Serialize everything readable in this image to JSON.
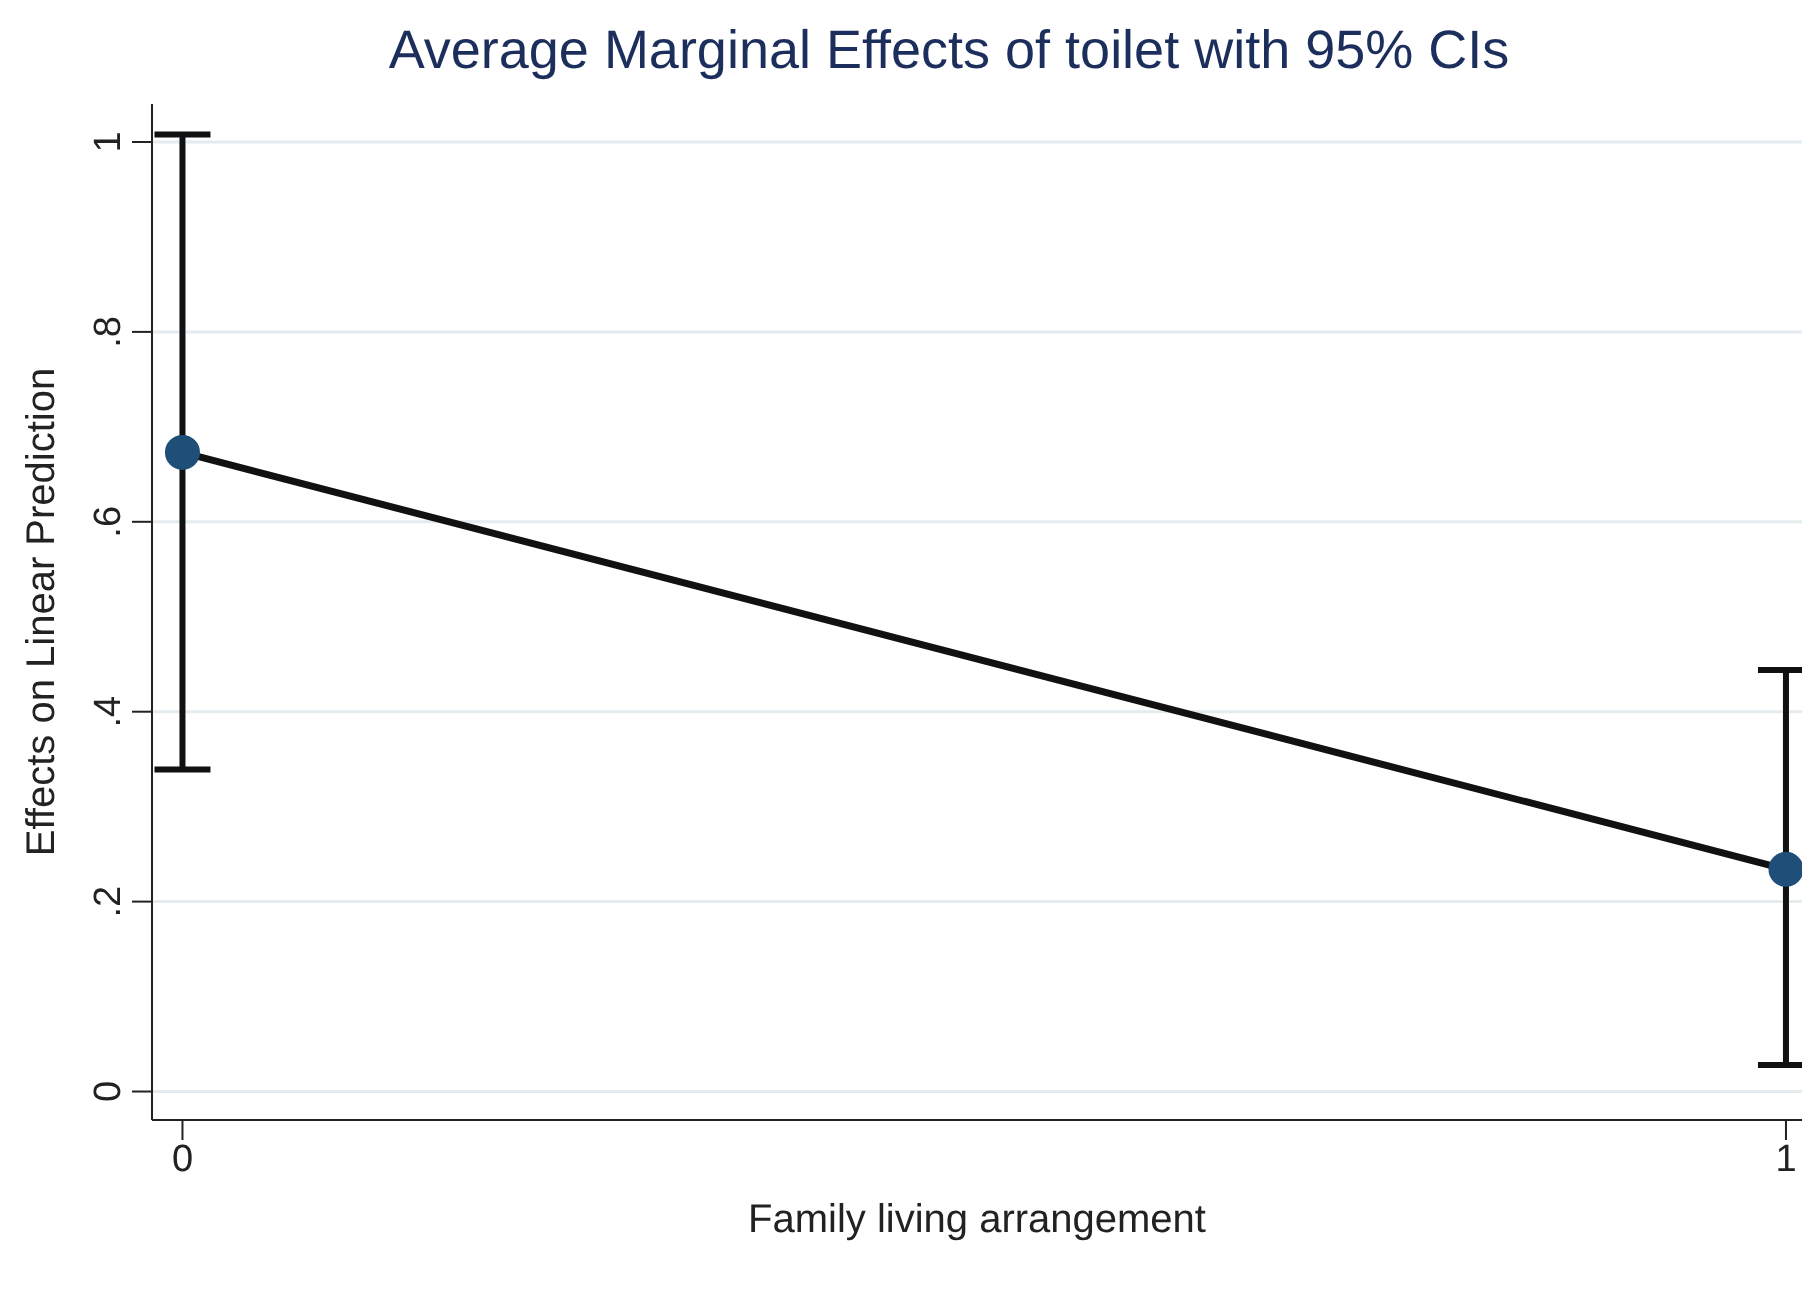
{
  "chart_data": {
    "type": "line",
    "title": "Average Marginal Effects of toilet with 95% CIs",
    "xlabel": "Family living arrangement",
    "ylabel": "Effects on Linear Prediction",
    "x": [
      0,
      1
    ],
    "series": [
      {
        "color": "#1f4e79",
        "values": [
          0.673,
          0.234
        ],
        "errors": [
          [
            0.339,
            1.008
          ],
          [
            0.028,
            0.444
          ]
        ]
      }
    ],
    "xlim": [
      -0.019,
      1.01
    ],
    "xticks": [
      0,
      1
    ],
    "ylim": [
      -0.03,
      1.04
    ],
    "yticks": [
      0,
      {
        "value": 0.2,
        "label": ".2"
      },
      {
        "value": 0.4,
        "label": ".4"
      },
      {
        "value": 0.6,
        "label": ".6"
      },
      {
        "value": 0.8,
        "label": ".8"
      },
      1
    ],
    "grid": "y",
    "marker": "circle",
    "line_style": "solid"
  }
}
